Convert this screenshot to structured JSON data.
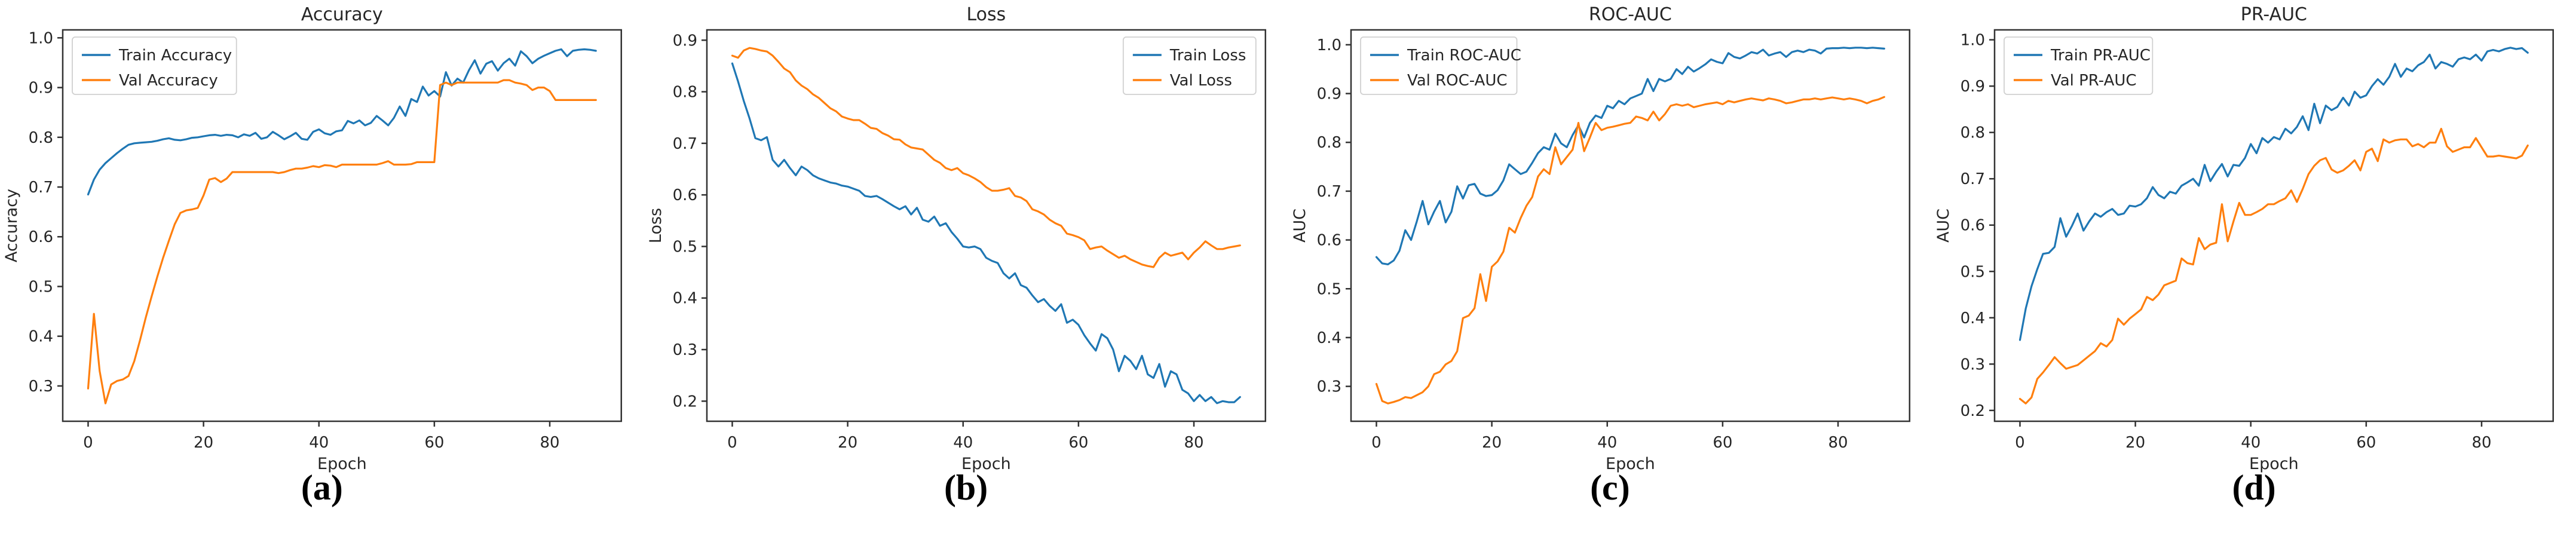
{
  "page": {
    "background": "#ffffff"
  },
  "colors": {
    "train_series": "#1f77b4",
    "val_series": "#ff7f0e",
    "axis_frame": "#333333",
    "text": "#262626",
    "legend_border": "#d0d0d0",
    "legend_fill": "#ffffff"
  },
  "chart_data": [
    {
      "id": "accuracy",
      "type": "line",
      "title": "Accuracy",
      "xlabel": "Epoch",
      "ylabel": "Accuracy",
      "caption": "(a)",
      "x_description": "epoch index 0..88",
      "x_ticks": [
        0,
        20,
        40,
        60,
        80
      ],
      "y_ticks": [
        0.3,
        0.4,
        0.5,
        0.6,
        0.7,
        0.8,
        0.9,
        1.0
      ],
      "xlim": [
        -4.4,
        92.4
      ],
      "ylim": [
        0.229,
        1.016
      ],
      "grid": false,
      "legend_position": "top-left",
      "series": [
        {
          "name": "Train Accuracy",
          "color_key": "train_series",
          "values": [
            0.685,
            0.715,
            0.735,
            0.748,
            0.758,
            0.768,
            0.777,
            0.785,
            0.788,
            0.789,
            0.79,
            0.791,
            0.793,
            0.796,
            0.798,
            0.795,
            0.794,
            0.796,
            0.799,
            0.8,
            0.802,
            0.804,
            0.805,
            0.803,
            0.805,
            0.804,
            0.8,
            0.806,
            0.803,
            0.809,
            0.797,
            0.8,
            0.811,
            0.804,
            0.796,
            0.802,
            0.809,
            0.797,
            0.795,
            0.811,
            0.816,
            0.808,
            0.805,
            0.812,
            0.814,
            0.833,
            0.828,
            0.834,
            0.824,
            0.829,
            0.843,
            0.834,
            0.824,
            0.839,
            0.862,
            0.843,
            0.877,
            0.871,
            0.902,
            0.884,
            0.893,
            0.882,
            0.931,
            0.904,
            0.918,
            0.91,
            0.935,
            0.955,
            0.928,
            0.948,
            0.953,
            0.934,
            0.949,
            0.958,
            0.944,
            0.973,
            0.963,
            0.949,
            0.958,
            0.964,
            0.969,
            0.974,
            0.977,
            0.963,
            0.974,
            0.976,
            0.977,
            0.976,
            0.974
          ]
        },
        {
          "name": "Val Accuracy",
          "color_key": "val_series",
          "values": [
            0.295,
            0.445,
            0.33,
            0.265,
            0.303,
            0.31,
            0.313,
            0.32,
            0.35,
            0.392,
            0.438,
            0.48,
            0.52,
            0.558,
            0.592,
            0.625,
            0.648,
            0.653,
            0.655,
            0.658,
            0.683,
            0.715,
            0.718,
            0.71,
            0.717,
            0.73,
            0.73,
            0.73,
            0.73,
            0.73,
            0.73,
            0.73,
            0.73,
            0.728,
            0.73,
            0.734,
            0.737,
            0.737,
            0.739,
            0.742,
            0.74,
            0.744,
            0.743,
            0.74,
            0.745,
            0.745,
            0.745,
            0.745,
            0.745,
            0.745,
            0.745,
            0.748,
            0.752,
            0.745,
            0.745,
            0.745,
            0.746,
            0.75,
            0.75,
            0.75,
            0.75,
            0.905,
            0.91,
            0.905,
            0.91,
            0.91,
            0.91,
            0.91,
            0.91,
            0.91,
            0.91,
            0.91,
            0.915,
            0.915,
            0.91,
            0.908,
            0.905,
            0.895,
            0.9,
            0.9,
            0.893,
            0.875,
            0.875,
            0.875,
            0.875,
            0.875,
            0.875,
            0.875,
            0.875
          ]
        }
      ]
    },
    {
      "id": "loss",
      "type": "line",
      "title": "Loss",
      "xlabel": "Epoch",
      "ylabel": "Loss",
      "caption": "(b)",
      "x_description": "epoch index 0..88",
      "x_ticks": [
        0,
        20,
        40,
        60,
        80
      ],
      "y_ticks": [
        0.2,
        0.3,
        0.4,
        0.5,
        0.6,
        0.7,
        0.8,
        0.9
      ],
      "xlim": [
        -4.4,
        92.4
      ],
      "ylim": [
        0.161,
        0.92
      ],
      "grid": false,
      "legend_position": "top-right",
      "series": [
        {
          "name": "Train Loss",
          "color_key": "train_series",
          "values": [
            0.855,
            0.82,
            0.782,
            0.748,
            0.71,
            0.706,
            0.712,
            0.668,
            0.655,
            0.668,
            0.652,
            0.638,
            0.655,
            0.648,
            0.638,
            0.632,
            0.628,
            0.624,
            0.622,
            0.618,
            0.616,
            0.612,
            0.608,
            0.598,
            0.596,
            0.598,
            0.592,
            0.585,
            0.578,
            0.572,
            0.578,
            0.562,
            0.575,
            0.552,
            0.548,
            0.558,
            0.54,
            0.545,
            0.528,
            0.515,
            0.5,
            0.498,
            0.5,
            0.495,
            0.478,
            0.472,
            0.468,
            0.448,
            0.438,
            0.448,
            0.425,
            0.42,
            0.405,
            0.392,
            0.398,
            0.385,
            0.375,
            0.388,
            0.352,
            0.358,
            0.348,
            0.328,
            0.312,
            0.298,
            0.33,
            0.322,
            0.3,
            0.258,
            0.288,
            0.278,
            0.262,
            0.288,
            0.252,
            0.245,
            0.272,
            0.228,
            0.258,
            0.252,
            0.222,
            0.215,
            0.2,
            0.212,
            0.2,
            0.208,
            0.196,
            0.2,
            0.198,
            0.198,
            0.208
          ]
        },
        {
          "name": "Val Loss",
          "color_key": "val_series",
          "values": [
            0.87,
            0.866,
            0.88,
            0.885,
            0.883,
            0.88,
            0.878,
            0.87,
            0.858,
            0.845,
            0.838,
            0.822,
            0.812,
            0.805,
            0.795,
            0.788,
            0.778,
            0.768,
            0.762,
            0.752,
            0.748,
            0.745,
            0.745,
            0.738,
            0.73,
            0.728,
            0.72,
            0.715,
            0.708,
            0.707,
            0.698,
            0.692,
            0.69,
            0.688,
            0.678,
            0.668,
            0.662,
            0.652,
            0.648,
            0.652,
            0.642,
            0.638,
            0.632,
            0.625,
            0.615,
            0.608,
            0.608,
            0.61,
            0.613,
            0.598,
            0.595,
            0.588,
            0.572,
            0.568,
            0.562,
            0.552,
            0.545,
            0.54,
            0.525,
            0.522,
            0.518,
            0.512,
            0.495,
            0.498,
            0.5,
            0.492,
            0.485,
            0.478,
            0.482,
            0.475,
            0.47,
            0.465,
            0.462,
            0.46,
            0.478,
            0.488,
            0.482,
            0.485,
            0.488,
            0.475,
            0.488,
            0.498,
            0.51,
            0.502,
            0.495,
            0.495,
            0.498,
            0.5,
            0.502
          ]
        }
      ]
    },
    {
      "id": "roc-auc",
      "type": "line",
      "title": "ROC-AUC",
      "xlabel": "Epoch",
      "ylabel": "AUC",
      "caption": "(c)",
      "x_description": "epoch index 0..88",
      "x_ticks": [
        0,
        20,
        40,
        60,
        80
      ],
      "y_ticks": [
        0.3,
        0.4,
        0.5,
        0.6,
        0.7,
        0.8,
        0.9,
        1.0
      ],
      "xlim": [
        -4.4,
        92.4
      ],
      "ylim": [
        0.2285,
        1.0305
      ],
      "grid": false,
      "legend_position": "top-left",
      "series": [
        {
          "name": "Train ROC-AUC",
          "color_key": "train_series",
          "values": [
            0.565,
            0.552,
            0.55,
            0.558,
            0.578,
            0.62,
            0.6,
            0.638,
            0.68,
            0.632,
            0.658,
            0.68,
            0.636,
            0.658,
            0.71,
            0.685,
            0.712,
            0.715,
            0.695,
            0.69,
            0.692,
            0.702,
            0.722,
            0.755,
            0.745,
            0.735,
            0.74,
            0.758,
            0.778,
            0.79,
            0.785,
            0.818,
            0.798,
            0.79,
            0.815,
            0.835,
            0.81,
            0.84,
            0.855,
            0.85,
            0.875,
            0.87,
            0.885,
            0.878,
            0.89,
            0.895,
            0.9,
            0.93,
            0.905,
            0.93,
            0.925,
            0.93,
            0.95,
            0.94,
            0.955,
            0.945,
            0.952,
            0.96,
            0.97,
            0.965,
            0.962,
            0.983,
            0.975,
            0.972,
            0.978,
            0.985,
            0.982,
            0.99,
            0.978,
            0.982,
            0.985,
            0.975,
            0.985,
            0.988,
            0.985,
            0.99,
            0.988,
            0.982,
            0.992,
            0.993,
            0.993,
            0.994,
            0.993,
            0.994,
            0.994,
            0.993,
            0.994,
            0.993,
            0.992
          ]
        },
        {
          "name": "Val ROC-AUC",
          "color_key": "val_series",
          "values": [
            0.305,
            0.27,
            0.265,
            0.268,
            0.272,
            0.278,
            0.276,
            0.282,
            0.288,
            0.3,
            0.325,
            0.33,
            0.345,
            0.352,
            0.372,
            0.44,
            0.445,
            0.46,
            0.53,
            0.475,
            0.545,
            0.556,
            0.576,
            0.625,
            0.615,
            0.645,
            0.67,
            0.688,
            0.73,
            0.745,
            0.735,
            0.79,
            0.755,
            0.77,
            0.785,
            0.84,
            0.782,
            0.81,
            0.84,
            0.825,
            0.83,
            0.832,
            0.835,
            0.838,
            0.84,
            0.853,
            0.85,
            0.845,
            0.863,
            0.845,
            0.858,
            0.875,
            0.878,
            0.875,
            0.878,
            0.872,
            0.875,
            0.878,
            0.88,
            0.882,
            0.878,
            0.885,
            0.882,
            0.885,
            0.888,
            0.89,
            0.888,
            0.886,
            0.89,
            0.888,
            0.885,
            0.88,
            0.882,
            0.885,
            0.888,
            0.888,
            0.89,
            0.888,
            0.89,
            0.892,
            0.89,
            0.888,
            0.89,
            0.888,
            0.885,
            0.88,
            0.885,
            0.888,
            0.893
          ]
        }
      ]
    },
    {
      "id": "pr-auc",
      "type": "line",
      "title": "PR-AUC",
      "xlabel": "Epoch",
      "ylabel": "AUC",
      "caption": "(d)",
      "x_description": "epoch index 0..88",
      "x_ticks": [
        0,
        20,
        40,
        60,
        80
      ],
      "y_ticks": [
        0.2,
        0.3,
        0.4,
        0.5,
        0.6,
        0.7,
        0.8,
        0.9,
        1.0
      ],
      "xlim": [
        -4.4,
        92.4
      ],
      "ylim": [
        0.1766,
        1.0214
      ],
      "grid": false,
      "legend_position": "top-left",
      "series": [
        {
          "name": "Train PR-AUC",
          "color_key": "train_series",
          "values": [
            0.352,
            0.42,
            0.468,
            0.505,
            0.538,
            0.54,
            0.553,
            0.615,
            0.575,
            0.598,
            0.625,
            0.588,
            0.608,
            0.625,
            0.618,
            0.628,
            0.635,
            0.622,
            0.625,
            0.642,
            0.64,
            0.645,
            0.658,
            0.682,
            0.665,
            0.658,
            0.672,
            0.668,
            0.685,
            0.692,
            0.7,
            0.685,
            0.73,
            0.695,
            0.715,
            0.732,
            0.705,
            0.73,
            0.728,
            0.745,
            0.775,
            0.755,
            0.788,
            0.778,
            0.79,
            0.785,
            0.808,
            0.798,
            0.812,
            0.835,
            0.805,
            0.862,
            0.82,
            0.858,
            0.848,
            0.855,
            0.875,
            0.858,
            0.888,
            0.875,
            0.88,
            0.9,
            0.915,
            0.903,
            0.92,
            0.948,
            0.92,
            0.938,
            0.932,
            0.945,
            0.952,
            0.968,
            0.938,
            0.952,
            0.948,
            0.942,
            0.958,
            0.962,
            0.958,
            0.968,
            0.955,
            0.975,
            0.978,
            0.975,
            0.98,
            0.983,
            0.98,
            0.982,
            0.972
          ]
        },
        {
          "name": "Val PR-AUC",
          "color_key": "val_series",
          "values": [
            0.225,
            0.215,
            0.228,
            0.268,
            0.282,
            0.298,
            0.315,
            0.302,
            0.29,
            0.294,
            0.298,
            0.308,
            0.318,
            0.328,
            0.345,
            0.338,
            0.352,
            0.398,
            0.385,
            0.398,
            0.408,
            0.418,
            0.445,
            0.438,
            0.45,
            0.47,
            0.475,
            0.48,
            0.528,
            0.518,
            0.515,
            0.572,
            0.548,
            0.558,
            0.562,
            0.645,
            0.565,
            0.608,
            0.648,
            0.622,
            0.622,
            0.628,
            0.635,
            0.645,
            0.645,
            0.652,
            0.658,
            0.675,
            0.65,
            0.678,
            0.71,
            0.728,
            0.74,
            0.745,
            0.72,
            0.713,
            0.718,
            0.728,
            0.74,
            0.718,
            0.758,
            0.765,
            0.738,
            0.785,
            0.778,
            0.783,
            0.785,
            0.785,
            0.77,
            0.775,
            0.768,
            0.778,
            0.778,
            0.808,
            0.77,
            0.758,
            0.763,
            0.768,
            0.768,
            0.788,
            0.768,
            0.748,
            0.748,
            0.75,
            0.748,
            0.746,
            0.744,
            0.75,
            0.772
          ]
        }
      ]
    }
  ]
}
